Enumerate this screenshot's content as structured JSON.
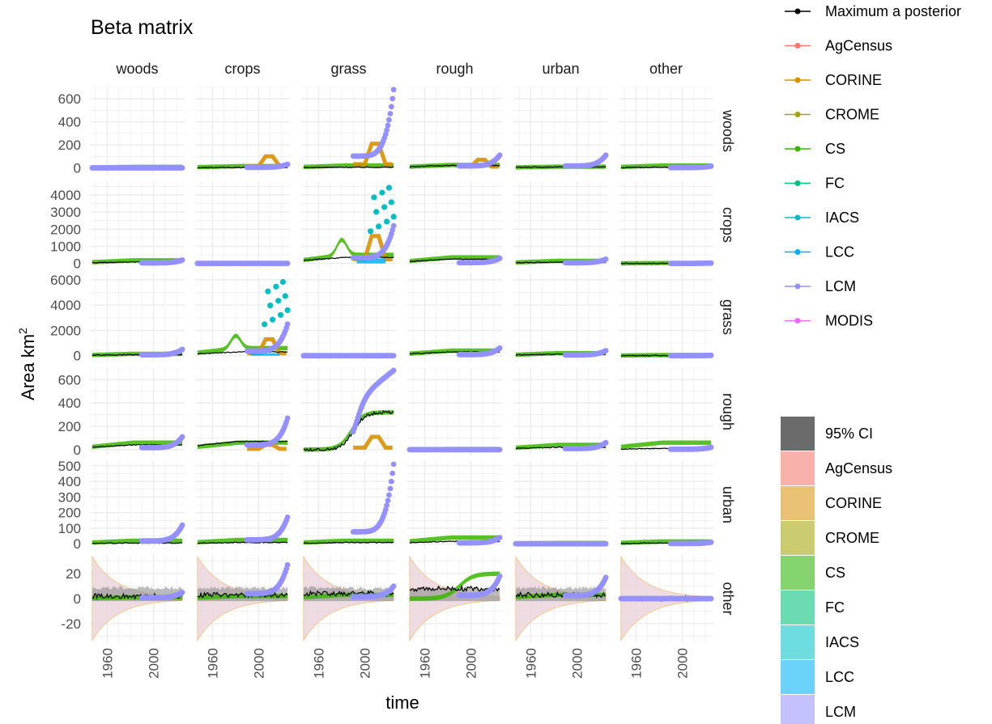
{
  "chart_data": {
    "type": "line",
    "title": "Beta matrix",
    "xlabel": "time",
    "ylabel": "Area km",
    "ylabel_superscript": "2",
    "col_facets": [
      "woods",
      "crops",
      "grass",
      "rough",
      "urban",
      "other"
    ],
    "row_facets": [
      "woods",
      "crops",
      "grass",
      "rough",
      "urban",
      "other"
    ],
    "x_range": [
      1945,
      2027
    ],
    "x_ticks": [
      "1960",
      "2000"
    ],
    "rows": [
      {
        "name": "woods",
        "ylim": [
          -60,
          700
        ],
        "ticks": [
          0,
          200,
          400,
          600
        ],
        "tick_labels": [
          "0",
          "200",
          "400",
          "600"
        ]
      },
      {
        "name": "crops",
        "ylim": [
          -300,
          4800
        ],
        "ticks": [
          0,
          1000,
          2000,
          3000,
          4000
        ],
        "tick_labels": [
          "0",
          "1000",
          "2000",
          "3000",
          "4000"
        ]
      },
      {
        "name": "grass",
        "ylim": [
          -400,
          6500
        ],
        "ticks": [
          0,
          2000,
          4000,
          6000
        ],
        "tick_labels": [
          "0",
          "2000",
          "4000",
          "6000"
        ]
      },
      {
        "name": "rough",
        "ylim": [
          -50,
          700
        ],
        "ticks": [
          0,
          200,
          400,
          600
        ],
        "tick_labels": [
          "0",
          "200",
          "400",
          "600"
        ]
      },
      {
        "name": "urban",
        "ylim": [
          -30,
          530
        ],
        "ticks": [
          0,
          100,
          200,
          300,
          400,
          500
        ],
        "tick_labels": [
          "0",
          "100",
          "200",
          "300",
          "400",
          "500"
        ]
      },
      {
        "name": "other",
        "ylim": [
          -35,
          35
        ],
        "ticks": [
          -20,
          0,
          20
        ],
        "tick_labels": [
          "-20",
          "0",
          "20"
        ]
      }
    ],
    "line_legend": [
      {
        "name": "Maximum a posterior",
        "color": "#000000"
      },
      {
        "name": "AgCensus",
        "color": "#F8766D"
      },
      {
        "name": "CORINE",
        "color": "#D89000"
      },
      {
        "name": "CROME",
        "color": "#A3A500"
      },
      {
        "name": "CS",
        "color": "#39B600"
      },
      {
        "name": "FC",
        "color": "#00BF7D"
      },
      {
        "name": "IACS",
        "color": "#00BFC4"
      },
      {
        "name": "LCC",
        "color": "#00B0F6"
      },
      {
        "name": "LCM",
        "color": "#9590FF"
      },
      {
        "name": "MODIS",
        "color": "#E76BF3"
      }
    ],
    "fill_legend": [
      {
        "name": "95% CI",
        "color": "#6b6b6b"
      },
      {
        "name": "AgCensus",
        "color": "#F8B1AB"
      },
      {
        "name": "CORINE",
        "color": "#E9C276"
      },
      {
        "name": "CROME",
        "color": "#CBCC70"
      },
      {
        "name": "CS",
        "color": "#86D46F"
      },
      {
        "name": "FC",
        "color": "#6DDBB1"
      },
      {
        "name": "IACS",
        "color": "#6DDDDF"
      },
      {
        "name": "LCC",
        "color": "#6BD3FA"
      },
      {
        "name": "LCM",
        "color": "#C4C1FF"
      }
    ],
    "series_colors": {
      "map": "#000000",
      "CORINE": "#D89000",
      "CS": "#39B600",
      "IACS": "#00BFC4",
      "LCC": "#00B0F6",
      "LCM": "#9590FF"
    },
    "panels": [
      {
        "row": 0,
        "col": 0,
        "lcm_max": 20,
        "cs_level": 8,
        "map_level": 2
      },
      {
        "row": 0,
        "col": 1,
        "lcm_max": 30,
        "cs_level": 15,
        "map_level": 3,
        "corine_peak": 100
      },
      {
        "row": 0,
        "col": 2,
        "lcm_max": 680,
        "cs_level": 20,
        "map_level": 5,
        "corine_peak": 210
      },
      {
        "row": 0,
        "col": 3,
        "lcm_max": 110,
        "cs_level": 25,
        "map_level": 20,
        "corine_peak": 70
      },
      {
        "row": 0,
        "col": 4,
        "lcm_max": 110,
        "cs_level": 10,
        "map_level": 8
      },
      {
        "row": 0,
        "col": 5,
        "lcm_max": 15,
        "cs_level": 20,
        "map_level": 5
      },
      {
        "row": 1,
        "col": 0,
        "lcm_max": 200,
        "cs_level": 180,
        "map_level": 80
      },
      {
        "row": 1,
        "col": 1,
        "lcm_max": 10,
        "cs_level": 10,
        "map_level": 5
      },
      {
        "row": 1,
        "col": 2,
        "lcm_max": 2200,
        "cs_level": 500,
        "map_level": 350,
        "cs_hump": 900,
        "iacs_max": 4700,
        "lcc_level": 300,
        "corine_peak": 1600
      },
      {
        "row": 1,
        "col": 3,
        "lcm_max": 300,
        "cs_level": 350,
        "map_level": 250
      },
      {
        "row": 1,
        "col": 4,
        "lcm_max": 250,
        "cs_level": 150,
        "map_level": 80
      },
      {
        "row": 1,
        "col": 5,
        "lcm_max": 20,
        "cs_level": 20,
        "map_level": 10
      },
      {
        "row": 2,
        "col": 0,
        "lcm_max": 500,
        "cs_level": 150,
        "map_level": 80
      },
      {
        "row": 2,
        "col": 1,
        "lcm_max": 2500,
        "cs_level": 600,
        "map_level": 300,
        "cs_hump": 1000,
        "iacs_max": 6200,
        "lcc_level": 200,
        "corine_peak": 1300
      },
      {
        "row": 2,
        "col": 2,
        "lcm_max": 10,
        "cs_level": 10,
        "map_level": 5
      },
      {
        "row": 2,
        "col": 3,
        "lcm_max": 600,
        "cs_level": 400,
        "map_level": 300
      },
      {
        "row": 2,
        "col": 4,
        "lcm_max": 400,
        "cs_level": 200,
        "map_level": 120
      },
      {
        "row": 2,
        "col": 5,
        "lcm_max": 30,
        "cs_level": 50,
        "map_level": 20
      },
      {
        "row": 3,
        "col": 0,
        "lcm_max": 110,
        "cs_level": 60,
        "map_level": 40
      },
      {
        "row": 3,
        "col": 1,
        "lcm_max": 270,
        "cs_level": 60,
        "map_level": 70,
        "corine_peak": 40
      },
      {
        "row": 3,
        "col": 2,
        "lcm_max": 680,
        "cs_level": 320,
        "map_level": 320,
        "corine_peak": 110,
        "growth": true
      },
      {
        "row": 3,
        "col": 3,
        "lcm_max": 5,
        "cs_level": 5,
        "map_level": 2
      },
      {
        "row": 3,
        "col": 4,
        "lcm_max": 60,
        "cs_level": 40,
        "map_level": 20
      },
      {
        "row": 3,
        "col": 5,
        "lcm_max": 20,
        "cs_level": 60,
        "map_level": 10
      },
      {
        "row": 4,
        "col": 0,
        "lcm_max": 120,
        "cs_level": 20,
        "map_level": 5
      },
      {
        "row": 4,
        "col": 1,
        "lcm_max": 170,
        "cs_level": 25,
        "map_level": 8
      },
      {
        "row": 4,
        "col": 2,
        "lcm_max": 510,
        "cs_level": 20,
        "map_level": 8
      },
      {
        "row": 4,
        "col": 3,
        "lcm_max": 40,
        "cs_level": 40,
        "map_level": 15
      },
      {
        "row": 4,
        "col": 4,
        "lcm_max": 5,
        "cs_level": 5,
        "map_level": 2
      },
      {
        "row": 4,
        "col": 5,
        "lcm_max": 10,
        "cs_level": 15,
        "map_level": 5
      },
      {
        "row": 5,
        "col": 0,
        "lcm_max": 5,
        "cs_level": 1,
        "map_level": 2
      },
      {
        "row": 5,
        "col": 1,
        "lcm_max": 27,
        "cs_level": 2,
        "map_level": 3
      },
      {
        "row": 5,
        "col": 2,
        "lcm_max": 10,
        "cs_level": 3,
        "map_level": 4
      },
      {
        "row": 5,
        "col": 3,
        "lcm_max": 18,
        "cs_level": 20,
        "map_level": 8
      },
      {
        "row": 5,
        "col": 4,
        "lcm_max": 17,
        "cs_level": 3,
        "map_level": 3
      },
      {
        "row": 5,
        "col": 5,
        "lcm_max": 0,
        "cs_level": 0,
        "map_level": 0
      }
    ]
  }
}
